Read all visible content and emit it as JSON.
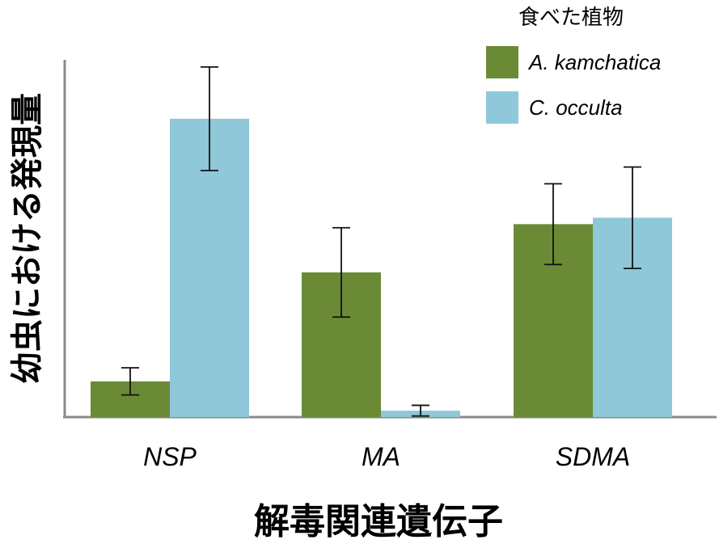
{
  "chart_data": {
    "type": "bar",
    "title": "",
    "xlabel": "解毒関連遺伝子",
    "ylabel": "幼虫における発現量",
    "categories": [
      "NSP",
      "MA",
      "SDMA"
    ],
    "ylim": [
      0,
      100
    ],
    "grid": false,
    "legend": {
      "title": "食べた植物",
      "placement": "top-right"
    },
    "series": [
      {
        "name": "A. kamchatica",
        "color": "#6b8a35",
        "values": [
          10.0,
          40.5,
          54.0
        ],
        "error": [
          3.8,
          12.5,
          11.3
        ]
      },
      {
        "name": "C. occulta",
        "color": "#8ec8d9",
        "values": [
          83.5,
          1.8,
          55.8
        ],
        "error": [
          14.5,
          1.5,
          14.2
        ]
      }
    ]
  }
}
